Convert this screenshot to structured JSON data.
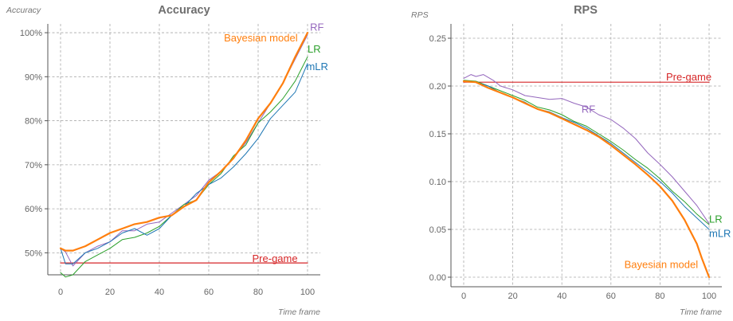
{
  "chart_data": [
    {
      "type": "line",
      "title": "Accuracy",
      "ylabel": "Accuracy",
      "xlabel": "Time frame",
      "xlim": [
        0,
        100
      ],
      "ylim": [
        45,
        102
      ],
      "x_ticks": [
        0,
        20,
        40,
        60,
        80,
        100
      ],
      "y_ticks": [
        50,
        60,
        70,
        80,
        90,
        100
      ],
      "y_tick_labels": [
        "50%",
        "60%",
        "70%",
        "80%",
        "90%",
        "100%"
      ],
      "grid": true,
      "series": [
        {
          "name": "Pre-game",
          "color": "#d62728",
          "width": 1.2,
          "x": [
            0,
            100
          ],
          "y": [
            47.7,
            47.7
          ]
        },
        {
          "name": "RF",
          "color": "#9467bd",
          "width": 1,
          "x": [
            0,
            2,
            5,
            10,
            15,
            20,
            25,
            30,
            35,
            40,
            45,
            50,
            55,
            60,
            65,
            70,
            75,
            80,
            85,
            90,
            95,
            100
          ],
          "y": [
            51,
            50.2,
            47,
            50,
            51.5,
            52.5,
            55,
            55,
            56.5,
            57,
            59,
            61,
            63,
            66.5,
            68.5,
            71.5,
            75,
            79.5,
            84,
            88.5,
            94,
            99.5
          ]
        },
        {
          "name": "LR",
          "color": "#2ca02c",
          "width": 1,
          "x": [
            0,
            2,
            5,
            10,
            15,
            20,
            25,
            30,
            35,
            40,
            45,
            50,
            55,
            60,
            65,
            70,
            75,
            80,
            85,
            90,
            95,
            100
          ],
          "y": [
            45.5,
            44.5,
            45,
            48,
            49.5,
            51,
            53,
            53.5,
            54.5,
            56,
            58.5,
            61,
            62,
            65.5,
            68,
            72,
            74.5,
            79.5,
            82,
            85,
            89,
            94.5
          ]
        },
        {
          "name": "mLR",
          "color": "#1f77b4",
          "width": 1,
          "x": [
            0,
            2,
            5,
            10,
            15,
            20,
            25,
            30,
            35,
            40,
            45,
            50,
            55,
            60,
            65,
            70,
            75,
            80,
            85,
            90,
            95,
            100
          ],
          "y": [
            51,
            47.5,
            47.5,
            50,
            51,
            52.5,
            54.5,
            55.5,
            54,
            55.5,
            58.5,
            60.5,
            63.5,
            65.5,
            67,
            69.5,
            72.5,
            76,
            80.5,
            83.5,
            86.5,
            93
          ]
        },
        {
          "name": "Bayesian model",
          "color": "#ff7f0e",
          "width": 2.2,
          "x": [
            0,
            2,
            5,
            10,
            15,
            20,
            25,
            30,
            35,
            40,
            45,
            50,
            55,
            60,
            65,
            70,
            75,
            80,
            85,
            90,
            95,
            100
          ],
          "y": [
            51,
            50.5,
            50.5,
            51.5,
            53,
            54.5,
            55.5,
            56.5,
            57,
            58,
            58.5,
            60.5,
            62,
            66,
            68.5,
            71.5,
            75.5,
            80.5,
            84,
            88.5,
            94.5,
            100
          ]
        }
      ],
      "annotations": [
        {
          "text": "Pre-game",
          "x": 96,
          "y": 47.9,
          "color": "#d62728",
          "anchor": "end",
          "font_size": 13
        },
        {
          "text": "Bayesian model",
          "x": 96,
          "y": 98,
          "color": "#ff7f0e",
          "anchor": "end",
          "font_size": 13
        },
        {
          "text": "RF",
          "x": 101,
          "y": 100.5,
          "color": "#9467bd",
          "anchor": "start",
          "font_size": 13
        },
        {
          "text": "LR",
          "x": 100,
          "y": 95.5,
          "color": "#2ca02c",
          "anchor": "start",
          "font_size": 13
        },
        {
          "text": "mLR",
          "x": 99.5,
          "y": 91.5,
          "color": "#1f77b4",
          "anchor": "start",
          "font_size": 13
        }
      ]
    },
    {
      "type": "line",
      "title": "RPS",
      "ylabel": "RPS",
      "xlabel": "Time frame",
      "xlim": [
        0,
        100
      ],
      "ylim": [
        -0.01,
        0.265
      ],
      "x_ticks": [
        0,
        20,
        40,
        60,
        80,
        100
      ],
      "y_ticks": [
        0,
        0.05,
        0.1,
        0.15,
        0.2,
        0.25
      ],
      "y_tick_labels": [
        "0.00",
        "0.05",
        "0.10",
        "0.15",
        "0.20",
        "0.25"
      ],
      "grid": true,
      "series": [
        {
          "name": "Pre-game",
          "color": "#d62728",
          "width": 1.2,
          "x": [
            0,
            100
          ],
          "y": [
            0.204,
            0.204
          ]
        },
        {
          "name": "RF",
          "color": "#9467bd",
          "width": 1,
          "x": [
            0,
            3,
            5,
            8,
            12,
            15,
            20,
            25,
            30,
            35,
            40,
            45,
            50,
            55,
            60,
            65,
            70,
            75,
            80,
            85,
            90,
            95,
            100
          ],
          "y": [
            0.208,
            0.212,
            0.21,
            0.212,
            0.206,
            0.2,
            0.196,
            0.19,
            0.188,
            0.186,
            0.187,
            0.182,
            0.178,
            0.17,
            0.165,
            0.156,
            0.145,
            0.13,
            0.118,
            0.105,
            0.09,
            0.075,
            0.056
          ]
        },
        {
          "name": "LR",
          "color": "#2ca02c",
          "width": 1,
          "x": [
            0,
            5,
            10,
            15,
            20,
            25,
            30,
            35,
            40,
            45,
            50,
            55,
            60,
            65,
            70,
            75,
            80,
            85,
            90,
            95,
            100
          ],
          "y": [
            0.206,
            0.205,
            0.2,
            0.195,
            0.19,
            0.185,
            0.178,
            0.175,
            0.17,
            0.163,
            0.158,
            0.15,
            0.142,
            0.133,
            0.123,
            0.114,
            0.103,
            0.09,
            0.079,
            0.066,
            0.055
          ]
        },
        {
          "name": "mLR",
          "color": "#1f77b4",
          "width": 1,
          "x": [
            0,
            5,
            10,
            15,
            20,
            25,
            30,
            35,
            40,
            45,
            50,
            55,
            60,
            65,
            70,
            75,
            80,
            85,
            90,
            95,
            100
          ],
          "y": [
            0.205,
            0.204,
            0.2,
            0.193,
            0.188,
            0.183,
            0.176,
            0.173,
            0.167,
            0.162,
            0.156,
            0.148,
            0.14,
            0.13,
            0.12,
            0.11,
            0.1,
            0.088,
            0.074,
            0.062,
            0.05
          ]
        },
        {
          "name": "Bayesian model",
          "color": "#ff7f0e",
          "width": 2.2,
          "x": [
            0,
            5,
            10,
            15,
            20,
            25,
            30,
            35,
            40,
            45,
            50,
            55,
            60,
            65,
            70,
            75,
            80,
            85,
            90,
            93,
            95,
            97,
            100
          ],
          "y": [
            0.205,
            0.204,
            0.198,
            0.193,
            0.188,
            0.182,
            0.176,
            0.172,
            0.166,
            0.16,
            0.154,
            0.147,
            0.138,
            0.128,
            0.118,
            0.107,
            0.095,
            0.08,
            0.06,
            0.045,
            0.035,
            0.02,
            0
          ]
        }
      ],
      "annotations": [
        {
          "text": "Pre-game",
          "x": 101,
          "y": 0.206,
          "color": "#d62728",
          "anchor": "end",
          "font_size": 13
        },
        {
          "text": "RF",
          "x": 48,
          "y": 0.172,
          "color": "#9467bd",
          "anchor": "start",
          "font_size": 13
        },
        {
          "text": "Bayesian model",
          "x": 95.5,
          "y": 0.0095,
          "color": "#ff7f0e",
          "anchor": "end",
          "font_size": 13
        },
        {
          "text": "LR",
          "x": 100,
          "y": 0.057,
          "color": "#2ca02c",
          "anchor": "start",
          "font_size": 13
        },
        {
          "text": "mLR",
          "x": 100,
          "y": 0.042,
          "color": "#1f77b4",
          "anchor": "start",
          "font_size": 13
        }
      ]
    }
  ]
}
